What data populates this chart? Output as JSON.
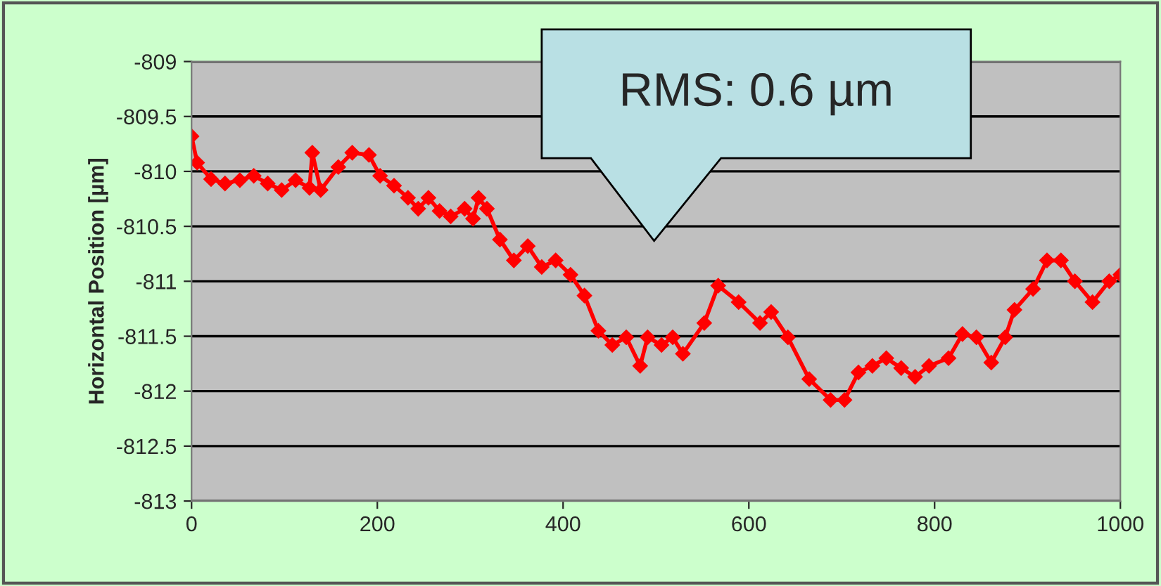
{
  "chart_data": {
    "type": "line",
    "ylabel": "Horizontal Position [µm]",
    "x": [
      0,
      6,
      21,
      36,
      52,
      67,
      82,
      97,
      112,
      127,
      130,
      139,
      158,
      173,
      191,
      203,
      218,
      233,
      244,
      255,
      267,
      279,
      294,
      303,
      309,
      318,
      332,
      347,
      362,
      377,
      392,
      408,
      423,
      438,
      453,
      468,
      483,
      491,
      506,
      518,
      529,
      552,
      567,
      589,
      612,
      624,
      642,
      665,
      688,
      703,
      718,
      733,
      748,
      764,
      779,
      794,
      815,
      830,
      845,
      861,
      876,
      886,
      906,
      921,
      936,
      951,
      970,
      988,
      1000
    ],
    "series": [
      {
        "color": "#ff0000",
        "values": [
          -809.68,
          -809.92,
          -810.07,
          -810.11,
          -810.08,
          -810.04,
          -810.11,
          -810.17,
          -810.08,
          -810.15,
          -809.83,
          -810.17,
          -809.96,
          -809.83,
          -809.85,
          -810.04,
          -810.13,
          -810.24,
          -810.34,
          -810.24,
          -810.36,
          -810.41,
          -810.34,
          -810.43,
          -810.24,
          -810.34,
          -810.62,
          -810.81,
          -810.68,
          -810.87,
          -810.81,
          -810.94,
          -811.13,
          -811.45,
          -811.58,
          -811.51,
          -811.77,
          -811.51,
          -811.58,
          -811.51,
          -811.66,
          -811.38,
          -811.04,
          -811.19,
          -811.38,
          -811.28,
          -811.51,
          -811.89,
          -812.08,
          -812.08,
          -811.83,
          -811.77,
          -811.7,
          -811.79,
          -811.87,
          -811.77,
          -811.7,
          -811.48,
          -811.51,
          -811.74,
          -811.51,
          -811.26,
          -811.07,
          -810.81,
          -810.81,
          -811.0,
          -811.19,
          -811.0,
          -810.94
        ]
      }
    ],
    "annotations": [
      "RMS: 0.6 µm"
    ],
    "xlim": [
      0,
      1000
    ],
    "xticks": [
      0,
      200,
      400,
      600,
      800,
      1000
    ],
    "ylim": [
      -813,
      -809
    ],
    "yticks": [
      -813,
      -812.5,
      -812,
      -811.5,
      -811,
      -810.5,
      -810,
      -809.5,
      -809
    ],
    "grid": "y",
    "marker": "diamond",
    "legend": false
  }
}
